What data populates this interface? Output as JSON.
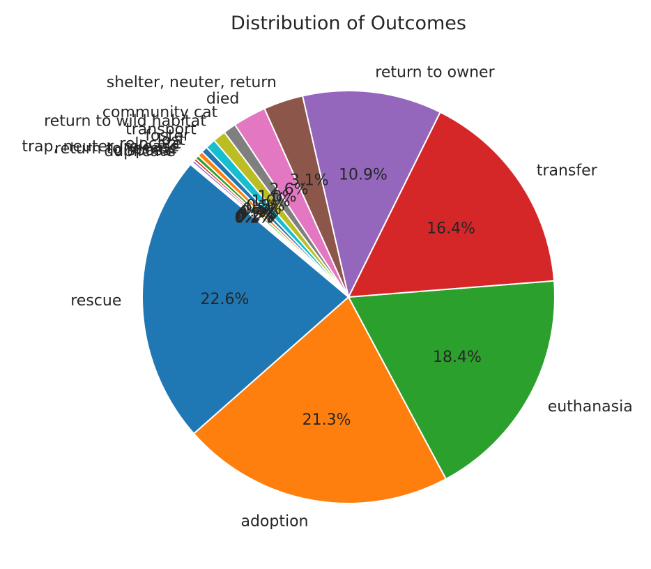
{
  "chart_data": {
    "type": "pie",
    "title": "Distribution of Outcomes",
    "start_angle_deg": 140,
    "direction": "counterclockwise",
    "slices": [
      {
        "label": "rescue",
        "value": 22.6,
        "pct_label": "22.6%",
        "color": "#1f77b4"
      },
      {
        "label": "adoption",
        "value": 21.3,
        "pct_label": "21.3%",
        "color": "#ff7f0e"
      },
      {
        "label": "euthanasia",
        "value": 18.4,
        "pct_label": "18.4%",
        "color": "#2ca02c"
      },
      {
        "label": "transfer",
        "value": 16.4,
        "pct_label": "16.4%",
        "color": "#d62728"
      },
      {
        "label": "return to owner",
        "value": 10.9,
        "pct_label": "10.9%",
        "color": "#9467bd"
      },
      {
        "label": "shelter, neuter, return",
        "value": 3.1,
        "pct_label": "3.1%",
        "color": "#8c564b"
      },
      {
        "label": "died",
        "value": 2.6,
        "pct_label": "2.6%",
        "color": "#e377c2"
      },
      {
        "label": "community cat",
        "value": 1.0,
        "pct_label": "1.0%",
        "color": "#7f7f7f"
      },
      {
        "label": "return to wild habitat",
        "value": 1.0,
        "pct_label": "1.0%",
        "color": "#bcbd22"
      },
      {
        "label": "transport",
        "value": 0.8,
        "pct_label": "0.8%",
        "color": "#17becf"
      },
      {
        "label": "foster",
        "value": 0.5,
        "pct_label": "0.5%",
        "color": "#1f77b4"
      },
      {
        "label": "lost",
        "value": 0.4,
        "pct_label": "0.4%",
        "color": "#ff7f0e"
      },
      {
        "label": "relocate",
        "value": 0.3,
        "pct_label": "0.3%",
        "color": "#2ca02c"
      },
      {
        "label": "trap, neuter, release",
        "value": 0.2,
        "pct_label": "0.2%",
        "color": "#d62728"
      },
      {
        "label": "return to rescue",
        "value": 0.2,
        "pct_label": "0.2%",
        "color": "#9467bd"
      },
      {
        "label": "disposal",
        "value": 0.1,
        "pct_label": "0.1%",
        "color": "#8c564b"
      },
      {
        "label": "duplicate",
        "value": 0.1,
        "pct_label": "0.1%",
        "color": "#e377c2"
      }
    ]
  }
}
